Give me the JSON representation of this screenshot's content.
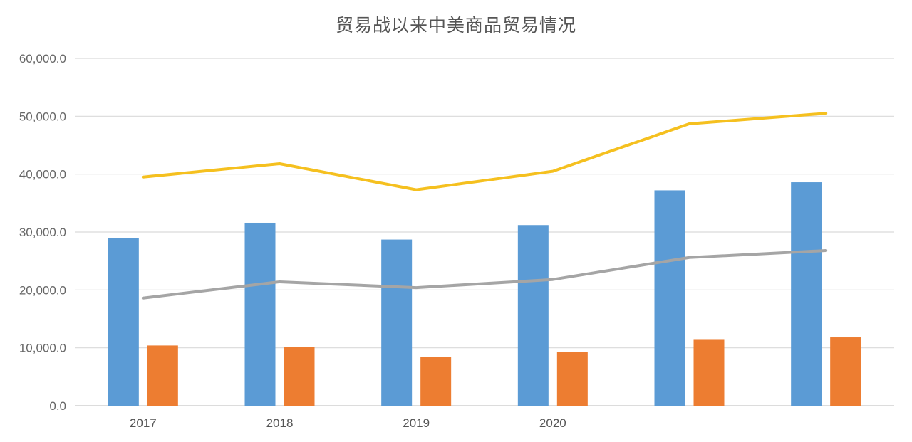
{
  "chart_data": {
    "type": "bar",
    "title": "贸易战以来中美商品贸易情况",
    "xlabel": "",
    "ylabel": "",
    "ylim": [
      0,
      60000
    ],
    "yticks": [
      "0.0",
      "10,000.0",
      "20,000.0",
      "30,000.0",
      "40,000.0",
      "50,000.0",
      "60,000.0"
    ],
    "categories": [
      "2017",
      "2018",
      "2019",
      "2020",
      "",
      ""
    ],
    "grid": true,
    "legend": "none",
    "series": [
      {
        "kind": "bar",
        "color": "#5B9BD5",
        "values": [
          29000,
          31600,
          28700,
          31200,
          37200,
          38600
        ]
      },
      {
        "kind": "bar",
        "color": "#ED7D31",
        "values": [
          10400,
          10200,
          8400,
          9300,
          11500,
          11800
        ]
      },
      {
        "kind": "line",
        "color": "#F5C01F",
        "values": [
          39500,
          41800,
          37300,
          40500,
          48700,
          50500
        ]
      },
      {
        "kind": "line",
        "color": "#A5A5A5",
        "values": [
          18600,
          21400,
          20400,
          21800,
          25600,
          26800
        ]
      }
    ]
  }
}
